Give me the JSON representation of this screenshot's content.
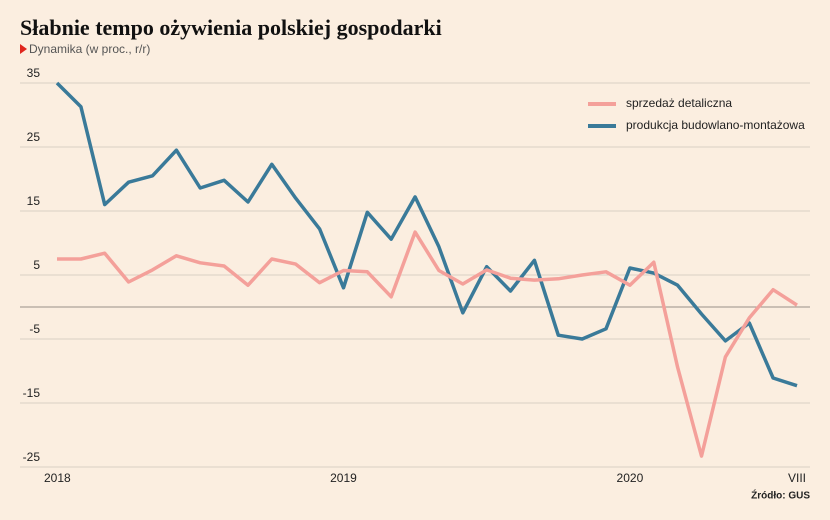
{
  "chart_data": {
    "type": "line",
    "title": "Słabnie tempo ożywienia polskiej gospodarki",
    "subtitle": "Dynamika (w proc., r/r)",
    "source": "Źródło: GUS",
    "categories": [
      "2018",
      null,
      null,
      null,
      null,
      null,
      null,
      null,
      null,
      null,
      null,
      null,
      "2019",
      null,
      null,
      null,
      null,
      null,
      null,
      null,
      null,
      null,
      null,
      null,
      "2020",
      null,
      null,
      null,
      null,
      null,
      null,
      "VIII"
    ],
    "series": [
      {
        "name": "sprzedaż detaliczna",
        "color": "#f4a09a",
        "values": [
          7.5,
          7.5,
          8.4,
          3.9,
          5.8,
          8,
          6.9,
          6.4,
          3.4,
          7.5,
          6.7,
          3.8,
          5.7,
          5.5,
          1.6,
          11.7,
          5.7,
          3.6,
          5.8,
          4.5,
          4.2,
          4.4,
          5,
          5.5,
          3.4,
          7,
          -9.4,
          -23.3,
          -7.8,
          -1.7,
          2.7,
          0.3
        ]
      },
      {
        "name": "produkcja budowlano-montażowa",
        "color": "#3a7a99",
        "values": [
          35,
          31.3,
          16,
          19.5,
          20.5,
          24.5,
          18.6,
          19.8,
          16.4,
          22.3,
          17,
          12.2,
          3,
          14.8,
          10.6,
          17.2,
          9.4,
          -0.9,
          6.3,
          2.5,
          7.3,
          -4.4,
          -5,
          -3.4,
          6.1,
          5.3,
          3.4,
          -1.1,
          -5.3,
          -2.5,
          -11.1,
          -12.3
        ]
      }
    ],
    "ylim": [
      -25,
      35
    ],
    "yticks": [
      35,
      25,
      15,
      5,
      -5,
      -15,
      -25
    ],
    "grid": true,
    "legend": "top-right"
  }
}
